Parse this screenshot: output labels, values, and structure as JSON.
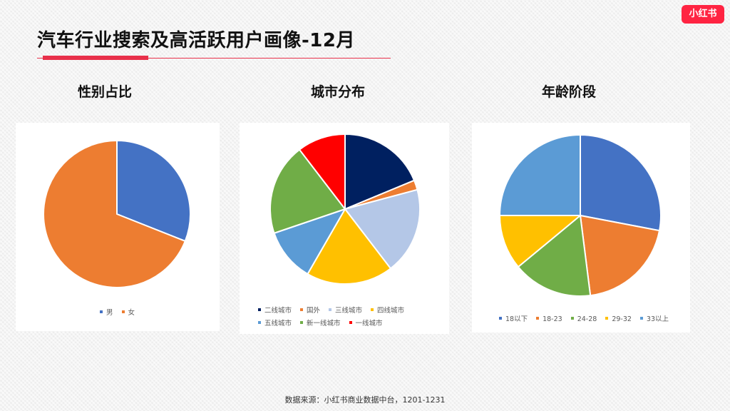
{
  "brand": {
    "logo_text": "小红书",
    "color": "#ff2442"
  },
  "page": {
    "title": "汽车行业搜索及高活跃用户画像-12月",
    "source": "数据来源：小红书商业数据中台，1201-1231",
    "accent_color": "#e8304a"
  },
  "chart_data": [
    {
      "type": "pie",
      "title": "性别占比",
      "categories": [
        "男",
        "女"
      ],
      "values": [
        31,
        69
      ],
      "colors": [
        "#4472c4",
        "#ed7d31"
      ],
      "legend_position": "bottom"
    },
    {
      "type": "pie",
      "title": "城市分布",
      "categories": [
        "二线城市",
        "国外",
        "三线城市",
        "四线城市",
        "五线城市",
        "新一线城市",
        "一线城市"
      ],
      "values": [
        18,
        2,
        18,
        18,
        11,
        19,
        10
      ],
      "colors": [
        "#002060",
        "#ed7d31",
        "#b4c7e7",
        "#ffc000",
        "#5b9bd5",
        "#70ad47",
        "#ff0000"
      ],
      "legend_position": "bottom"
    },
    {
      "type": "pie",
      "title": "年龄阶段",
      "categories": [
        "18以下",
        "18-23",
        "24-28",
        "29-32",
        "33以上"
      ],
      "values": [
        28,
        20,
        16,
        11,
        25
      ],
      "colors": [
        "#4472c4",
        "#ed7d31",
        "#70ad47",
        "#ffc000",
        "#5b9bd5"
      ],
      "legend_position": "bottom"
    }
  ]
}
